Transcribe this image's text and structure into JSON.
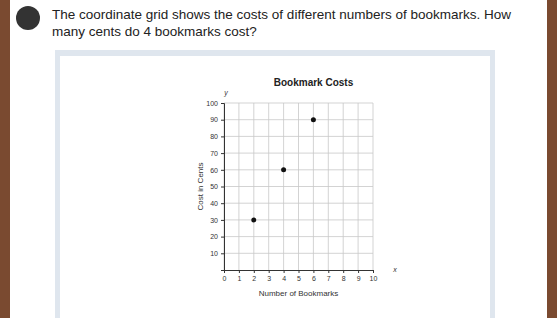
{
  "question": "The coordinate grid shows the costs of different numbers of bookmarks. How many cents do 4 bookmarks cost?",
  "chart_data": {
    "type": "scatter",
    "title": "Bookmark Costs",
    "xlabel": "Number of Bookmarks",
    "ylabel": "Cost in Cents",
    "annotations": [
      "y",
      "x"
    ],
    "x": [
      2,
      4,
      6
    ],
    "values": [
      30,
      60,
      90
    ],
    "color": "#111111",
    "marker": "circle",
    "xlim": [
      0,
      10
    ],
    "xticks": [
      0,
      1,
      2,
      3,
      4,
      5,
      6,
      7,
      8,
      9,
      10
    ],
    "ylim": [
      0,
      100
    ],
    "yticks": [
      10,
      20,
      30,
      40,
      50,
      60,
      70,
      80,
      90,
      100
    ],
    "grid": true
  }
}
